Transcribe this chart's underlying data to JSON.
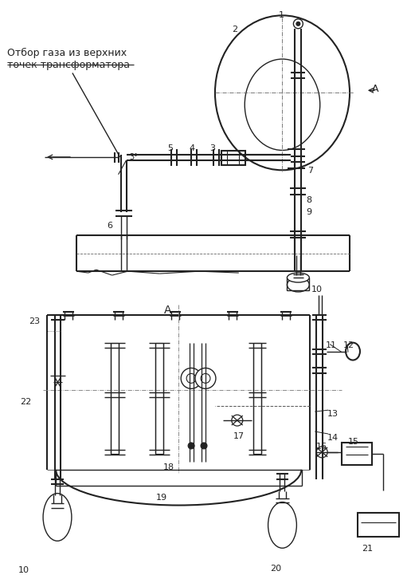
{
  "bg_color": "#ffffff",
  "line_color": "#222222",
  "text_color": "#222222",
  "figsize": [
    5.16,
    7.26
  ],
  "dpi": 100,
  "label_text": "Отбор газа из верхних\nточек трансформатора"
}
